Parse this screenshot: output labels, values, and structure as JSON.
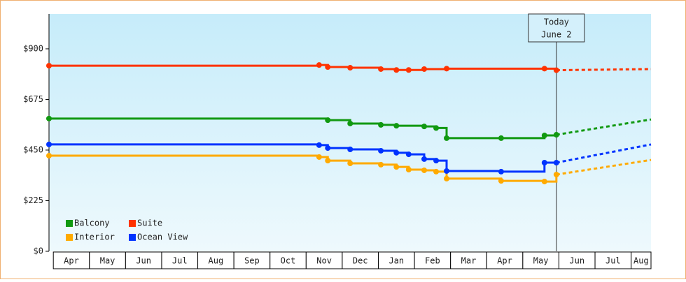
{
  "chart_data": {
    "type": "step-line",
    "xlim": [
      -0.12,
      16.55
    ],
    "xticks": [
      {
        "value": 0,
        "label": "Apr"
      },
      {
        "value": 1,
        "label": "May"
      },
      {
        "value": 2,
        "label": "Jun"
      },
      {
        "value": 3,
        "label": "Jul"
      },
      {
        "value": 4,
        "label": "Aug"
      },
      {
        "value": 5,
        "label": "Sep"
      },
      {
        "value": 6,
        "label": "Oct"
      },
      {
        "value": 7,
        "label": "Nov"
      },
      {
        "value": 8,
        "label": "Dec"
      },
      {
        "value": 9,
        "label": "Jan"
      },
      {
        "value": 10,
        "label": "Feb"
      },
      {
        "value": 11,
        "label": "Mar"
      },
      {
        "value": 12,
        "label": "Apr"
      },
      {
        "value": 13,
        "label": "May"
      },
      {
        "value": 14,
        "label": "Jun"
      },
      {
        "value": 15,
        "label": "Jul"
      },
      {
        "value": 16,
        "label": "Aug"
      }
    ],
    "ylim": [
      0,
      1055
    ],
    "yticks": [
      {
        "value": 0,
        "label": "$0"
      },
      {
        "value": 225,
        "label": "$225"
      },
      {
        "value": 450,
        "label": "$450"
      },
      {
        "value": 675,
        "label": "$675"
      },
      {
        "value": 900,
        "label": "$900"
      }
    ],
    "today": {
      "x": 13.93,
      "lines": [
        "Today",
        "June 2"
      ]
    },
    "legend": "bottom-left",
    "series": [
      {
        "name": "Balcony",
        "color": "#119911",
        "x": [
          -0.12,
          7.6,
          8.22,
          9.07,
          9.5,
          10.27,
          10.6,
          10.89,
          12.4,
          13.6,
          13.93,
          16.55
        ],
        "values": [
          590,
          583,
          568,
          562,
          558,
          555,
          548,
          503,
          503,
          515,
          518,
          586
        ]
      },
      {
        "name": "Suite",
        "color": "#ff3300",
        "x": [
          -0.12,
          7.36,
          7.6,
          8.22,
          9.07,
          9.5,
          9.84,
          10.27,
          10.89,
          13.6,
          13.93,
          16.55
        ],
        "values": [
          825,
          828,
          819,
          816,
          810,
          806,
          806,
          810,
          812,
          812,
          805,
          810
        ]
      },
      {
        "name": "Interior",
        "color": "#ffaa00",
        "x": [
          -0.12,
          7.36,
          7.6,
          8.22,
          9.07,
          9.5,
          9.84,
          10.27,
          10.6,
          10.89,
          12.4,
          13.6,
          13.93,
          16.55
        ],
        "values": [
          425,
          419,
          403,
          391,
          385,
          375,
          363,
          360,
          354,
          323,
          313,
          310,
          341,
          406
        ]
      },
      {
        "name": "Ocean View",
        "color": "#0033ff",
        "x": [
          -0.12,
          7.36,
          7.6,
          8.22,
          9.07,
          9.5,
          9.84,
          10.27,
          10.6,
          10.89,
          12.4,
          13.6,
          13.93,
          16.55
        ],
        "values": [
          475,
          472,
          459,
          453,
          447,
          438,
          431,
          410,
          403,
          357,
          354,
          394,
          394,
          475
        ]
      }
    ]
  }
}
